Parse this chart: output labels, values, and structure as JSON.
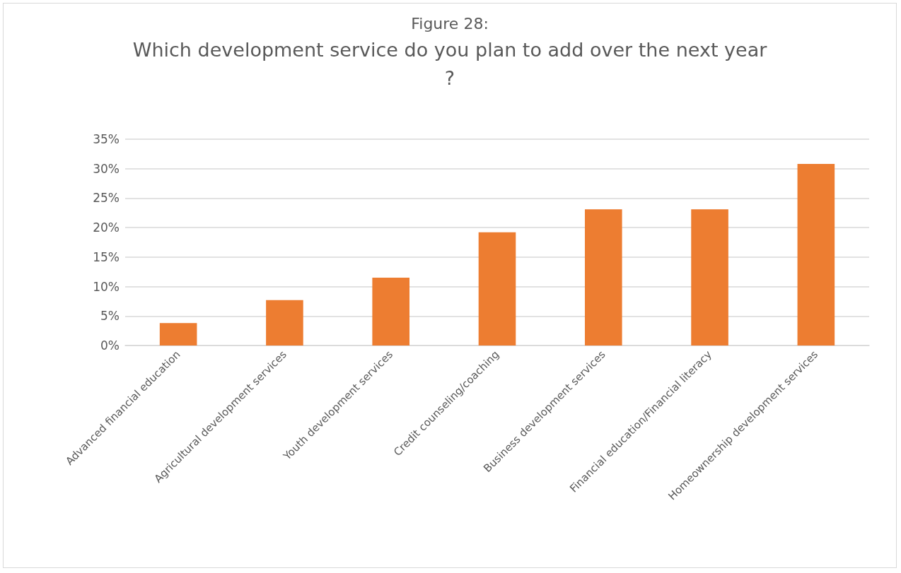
{
  "chart_data": {
    "type": "bar",
    "title": "Figure 28:",
    "subtitle": "Which development service do you plan to add over the next year?",
    "categories": [
      "Advanced financial education",
      "Agricultural development services",
      "Youth development services",
      "Credit counseling/coaching",
      "Business development services",
      "Financial education/Financial literacy",
      "Homeownership development services"
    ],
    "values": [
      3.8,
      7.7,
      11.5,
      19.2,
      23.1,
      23.1,
      30.8
    ],
    "color": "#ed7d31",
    "ylim": [
      0,
      35
    ],
    "yticks": [
      {
        "value": 0,
        "label": "0%"
      },
      {
        "value": 5,
        "label": "5%"
      },
      {
        "value": 10,
        "label": "10%"
      },
      {
        "value": 15,
        "label": "15%"
      },
      {
        "value": 20,
        "label": "20%"
      },
      {
        "value": 25,
        "label": "25%"
      },
      {
        "value": 30,
        "label": "30%"
      },
      {
        "value": 35,
        "label": "35%"
      }
    ],
    "grid": "y"
  }
}
